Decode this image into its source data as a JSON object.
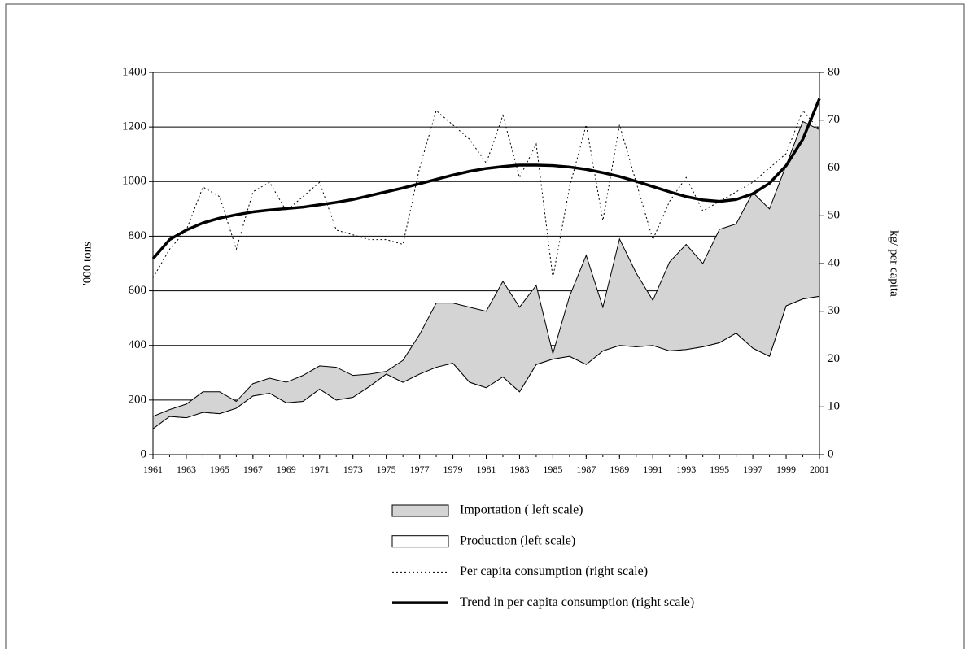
{
  "chart_data": {
    "type": "stacked_area_line",
    "y_label": "'000 tons",
    "y2_label": "kg/ per capita",
    "x": [
      1961,
      1962,
      1963,
      1964,
      1965,
      1966,
      1967,
      1968,
      1969,
      1970,
      1971,
      1972,
      1973,
      1974,
      1975,
      1976,
      1977,
      1978,
      1979,
      1980,
      1981,
      1982,
      1983,
      1984,
      1985,
      1986,
      1987,
      1988,
      1989,
      1990,
      1991,
      1992,
      1993,
      1994,
      1995,
      1996,
      1997,
      1998,
      1999,
      2000,
      2001
    ],
    "xlim": [
      1961,
      2001
    ],
    "xticks": [
      1961,
      1963,
      1965,
      1967,
      1969,
      1971,
      1973,
      1975,
      1977,
      1979,
      1981,
      1983,
      1985,
      1987,
      1989,
      1991,
      1993,
      1995,
      1997,
      1999,
      2001
    ],
    "ylim": [
      0,
      1400
    ],
    "yticks": [
      0,
      200,
      400,
      600,
      800,
      1000,
      1200,
      1400
    ],
    "y2lim": [
      0,
      80
    ],
    "y2ticks": [
      0,
      10,
      20,
      30,
      40,
      50,
      60,
      70,
      80
    ],
    "grid": true,
    "series": [
      {
        "name": "Production (left scale)",
        "color": "#ffffff",
        "kind": "area",
        "values": [
          95,
          140,
          135,
          155,
          150,
          170,
          215,
          225,
          190,
          195,
          240,
          200,
          210,
          250,
          295,
          265,
          295,
          320,
          335,
          265,
          245,
          285,
          230,
          330,
          350,
          360,
          330,
          380,
          400,
          395,
          400,
          380,
          385,
          395,
          410,
          445,
          390,
          360,
          545,
          570,
          580
        ]
      },
      {
        "name": "Importation ( left scale)",
        "color": "#d4d4d4",
        "kind": "area",
        "values": [
          45,
          25,
          50,
          75,
          80,
          25,
          45,
          55,
          75,
          95,
          85,
          120,
          80,
          45,
          10,
          80,
          145,
          235,
          220,
          275,
          280,
          350,
          310,
          290,
          20,
          220,
          400,
          160,
          390,
          270,
          165,
          325,
          385,
          305,
          415,
          400,
          570,
          540,
          515,
          650,
          610
        ]
      },
      {
        "name": "Per capita consumption (right scale)",
        "color": "#000000",
        "kind": "line",
        "line_style": "dotted",
        "axis": "y2",
        "values": [
          37,
          43,
          47,
          56,
          54,
          43,
          55,
          57,
          51,
          54,
          57,
          47,
          46,
          45,
          45,
          44,
          60,
          72,
          69,
          66,
          61,
          71,
          58,
          65,
          37,
          56,
          69,
          49,
          69,
          57,
          45,
          53,
          58,
          51,
          53,
          55,
          57,
          60,
          63,
          72,
          68
        ]
      },
      {
        "name": "Trend in per capita consumption (right scale)",
        "color": "#000000",
        "kind": "line",
        "line_style": "solid",
        "axis": "y2",
        "values": [
          41,
          45,
          47,
          48.5,
          49.5,
          50.2,
          50.8,
          51.2,
          51.5,
          51.8,
          52.3,
          52.8,
          53.4,
          54.2,
          55,
          55.8,
          56.7,
          57.6,
          58.5,
          59.3,
          59.9,
          60.3,
          60.6,
          60.6,
          60.5,
          60.2,
          59.7,
          59,
          58.2,
          57.2,
          56.1,
          55,
          54,
          53.3,
          53,
          53.4,
          54.6,
          56.8,
          60.5,
          66,
          74.5
        ]
      }
    ],
    "legend_order": [
      1,
      0,
      2,
      3
    ]
  }
}
